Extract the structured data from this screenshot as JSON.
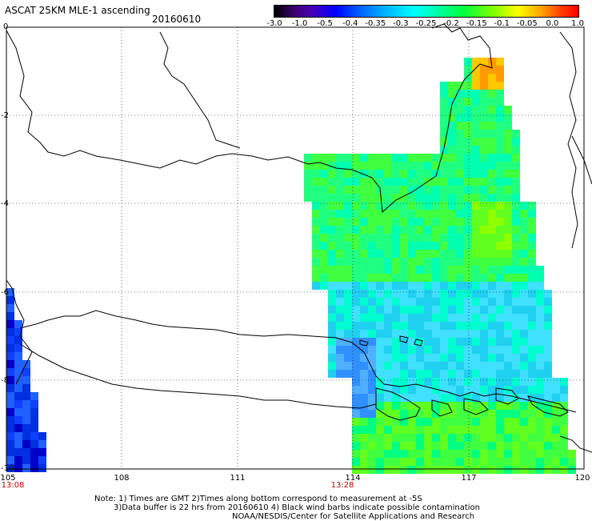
{
  "header": {
    "title": "ASCAT 25KM MLE-1 ascending",
    "date": "20160610"
  },
  "colorbar": {
    "ticks": [
      "-3.0",
      "-1.0",
      "-0.5",
      "-0.4",
      "-0.35",
      "-0.3",
      "-0.25",
      "-0.2",
      "-0.15",
      "-0.1",
      "-0.05",
      "0.0",
      "1.0"
    ],
    "colors": [
      "#000000",
      "#4b00b4",
      "#0000ff",
      "#00b0ff",
      "#00ffff",
      "#00ff40",
      "#ffff00",
      "#ff0000"
    ]
  },
  "map": {
    "lat_labels": [
      "0",
      "-2",
      "-4",
      "-6",
      "-8",
      "-10"
    ],
    "lon_labels": [
      "105",
      "108",
      "111",
      "114",
      "117",
      "120"
    ],
    "time_labels": [
      "13:08",
      "13:28"
    ],
    "lon_range": [
      105,
      120
    ],
    "lat_range": [
      -10,
      0
    ]
  },
  "notes": {
    "line1": "Note: 1) Times are GMT 2)Times along bottom correspond to measurement at -5S",
    "line2": "3)Data buffer is 22 hrs from 20160610 4) Black wind barbs indicate possible contamination",
    "line3": "NOAA/NESDIS/Center for Satellite Applications and Research"
  }
}
